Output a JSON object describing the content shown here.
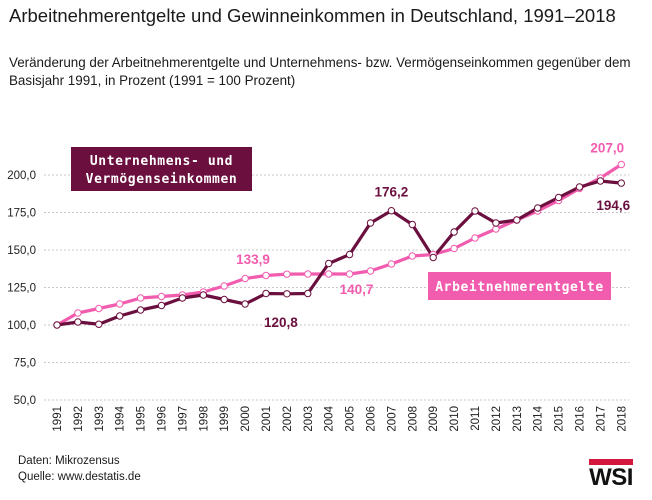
{
  "title": "Arbeitnehmerentgelte und Gewinneinkommen in Deutschland, 1991–2018",
  "subtitle": "Veränderung der Arbeitnehmerentgelte und Unternehmens- bzw. Vermögenseinkommen gegenüber dem Basisjahr 1991, in Prozent (1991 = 100 Prozent)",
  "source": {
    "line1": "Daten: Mikrozensus",
    "line2": "Quelle: www.destatis.de"
  },
  "logo": "WSI",
  "colors": {
    "arbeitnehmer": "#f25cae",
    "unternehmen": "#6b0f3e",
    "grid": "#c8c8c8",
    "logo_red": "#d4183d"
  },
  "chart_data": {
    "type": "line",
    "title": "Arbeitnehmerentgelte und Gewinneinkommen in Deutschland, 1991–2018",
    "subtitle": "Veränderung der Arbeitnehmerentgelte und Unternehmens- bzw. Vermögenseinkommen gegenüber dem Basisjahr 1991, in Prozent (1991 = 100 Prozent)",
    "x": [
      "1991",
      "1992",
      "1993",
      "1994",
      "1995",
      "1996",
      "1997",
      "1998",
      "1999",
      "2000",
      "2001",
      "2002",
      "2003",
      "2004",
      "2005",
      "2006",
      "2007",
      "2008",
      "2009",
      "2010",
      "2011",
      "2012",
      "2013",
      "2014",
      "2015",
      "2016",
      "2017",
      "2018"
    ],
    "ylim": [
      50,
      210
    ],
    "yticks": [
      "50,0",
      "75,0",
      "100,0",
      "125,0",
      "150,0",
      "175,0",
      "200,0"
    ],
    "grid": "horizontal dashed",
    "series": [
      {
        "name": "Arbeitnehmerentgelte",
        "color": "#f25cae",
        "values": [
          100,
          108,
          111,
          114,
          118,
          119,
          120,
          122,
          126,
          131,
          133,
          133.9,
          134,
          134,
          134,
          136,
          140.7,
          146,
          147,
          151,
          158,
          164,
          170,
          176,
          183,
          191,
          198,
          207.0
        ]
      },
      {
        "name": "Unternehmens- und Vermögenseinkommen",
        "color": "#6b0f3e",
        "values": [
          100,
          102,
          100.5,
          106,
          110,
          113,
          118,
          120,
          117,
          114,
          121,
          120.8,
          121,
          141,
          147,
          168,
          176.2,
          167,
          145,
          162,
          176,
          168,
          170,
          178,
          185,
          192,
          196,
          194.6
        ]
      }
    ],
    "annotations": [
      {
        "label": "207,0",
        "series": "Arbeitnehmerentgelte",
        "year": "2018"
      },
      {
        "label": "133,9",
        "series": "Arbeitnehmerentgelte",
        "year": "2002"
      },
      {
        "label": "140,7",
        "series": "Arbeitnehmerentgelte",
        "year": "2007"
      },
      {
        "label": "176,2",
        "series": "Unternehmens- und Vermögenseinkommen",
        "year": "2007"
      },
      {
        "label": "120,8",
        "series": "Unternehmens- und Vermögenseinkommen",
        "year": "2002"
      },
      {
        "label": "194,6",
        "series": "Unternehmens- und Vermögenseinkommen",
        "year": "2018"
      }
    ],
    "legend_boxes": [
      {
        "series": "Unternehmens- und Vermögenseinkommen",
        "lines": [
          "Unternehmens- und",
          "Vermögenseinkommen"
        ],
        "placement": "top-left"
      },
      {
        "series": "Arbeitnehmerentgelte",
        "lines": [
          "Arbeitnehmerentgelte"
        ],
        "placement": "center-right"
      }
    ]
  }
}
